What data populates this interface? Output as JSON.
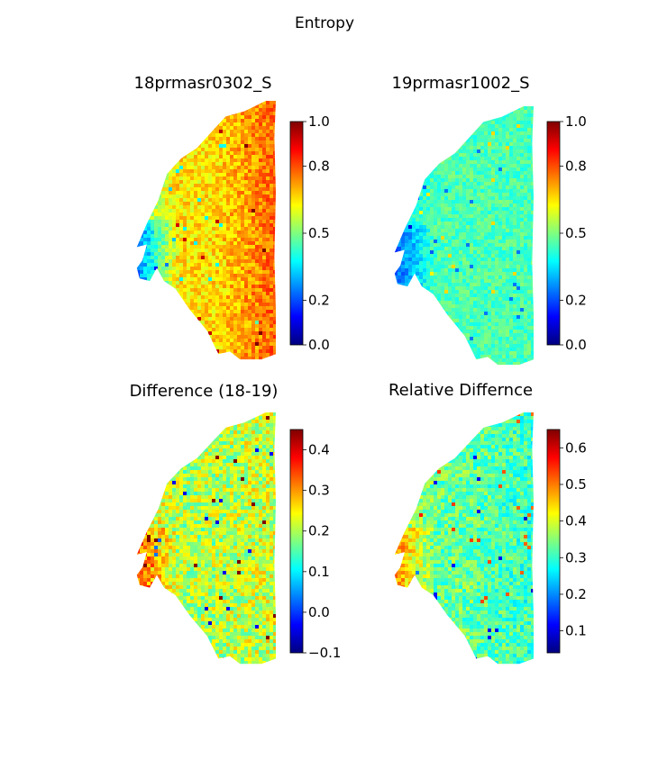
{
  "suptitle": "Entropy",
  "colormap": "jet",
  "colormap_stops": [
    "#00007f",
    "#0000ff",
    "#007fff",
    "#00ffff",
    "#7fff7f",
    "#ffff00",
    "#ff7f00",
    "#ff0000",
    "#7f0000"
  ],
  "chart_data": [
    {
      "type": "heatmap",
      "title": "18prmasr0302_S",
      "colorbar": {
        "min": 0.0,
        "max": 1.0,
        "ticks": [
          0.0,
          0.2,
          0.5,
          0.8,
          1.0
        ],
        "tick_labels": [
          "0.0",
          "0.2",
          "0.5",
          "0.8",
          "1.0"
        ]
      },
      "typical_value": 0.65,
      "spread": 0.08,
      "edge_value": 0.2,
      "east_value": 0.78
    },
    {
      "type": "heatmap",
      "title": "19prmasr1002_S",
      "colorbar": {
        "min": 0.0,
        "max": 1.0,
        "ticks": [
          0.0,
          0.2,
          0.5,
          0.8,
          1.0
        ],
        "tick_labels": [
          "0.0",
          "0.2",
          "0.5",
          "0.8",
          "1.0"
        ]
      },
      "typical_value": 0.45,
      "spread": 0.06,
      "edge_value": 0.2,
      "east_value": 0.45
    },
    {
      "type": "heatmap",
      "title": "Difference (18-19)",
      "colorbar": {
        "min": -0.1,
        "max": 0.45,
        "ticks": [
          -0.1,
          0.0,
          0.1,
          0.2,
          0.3,
          0.4
        ],
        "tick_labels": [
          "−0.1",
          "0.0",
          "0.1",
          "0.2",
          "0.3",
          "0.4"
        ]
      },
      "typical_value": 0.2,
      "spread": 0.07,
      "edge_value": 0.35,
      "east_value": 0.22
    },
    {
      "type": "heatmap",
      "title": "Relative Differnce",
      "colorbar": {
        "min": 0.04,
        "max": 0.65,
        "ticks": [
          0.1,
          0.2,
          0.3,
          0.4,
          0.5,
          0.6
        ],
        "tick_labels": [
          "0.1",
          "0.2",
          "0.3",
          "0.4",
          "0.5",
          "0.6"
        ]
      },
      "typical_value": 0.33,
      "spread": 0.06,
      "edge_value": 0.5,
      "east_value": 0.3
    }
  ]
}
